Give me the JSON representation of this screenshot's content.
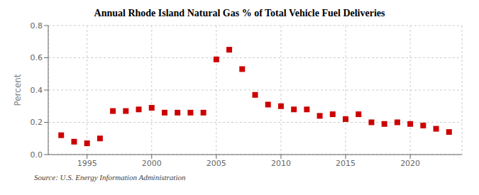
{
  "chart_data": {
    "type": "scatter",
    "title": "Annual Rhode Island Natural Gas % of Total Vehicle Fuel Deliveries",
    "ylabel": "Percent",
    "annotations": [
      "Source: U.S. Energy Information Administration"
    ],
    "x": [
      1993,
      1994,
      1995,
      1996,
      1997,
      1998,
      1999,
      2000,
      2001,
      2002,
      2003,
      2004,
      2005,
      2006,
      2007,
      2008,
      2009,
      2010,
      2011,
      2012,
      2013,
      2014,
      2015,
      2016,
      2017,
      2018,
      2019,
      2020,
      2021,
      2022,
      2023
    ],
    "values": [
      0.12,
      0.08,
      0.07,
      0.1,
      0.27,
      0.27,
      0.28,
      0.29,
      0.26,
      0.26,
      0.26,
      0.26,
      0.59,
      0.65,
      0.53,
      0.37,
      0.31,
      0.3,
      0.28,
      0.28,
      0.24,
      0.25,
      0.22,
      0.25,
      0.2,
      0.19,
      0.2,
      0.19,
      0.18,
      0.16,
      0.14
    ],
    "color": "#cc0000",
    "marker": "square",
    "xlim": [
      1992,
      2024
    ],
    "ylim": [
      0.0,
      0.8
    ],
    "xticks": [
      1995,
      2000,
      2005,
      2010,
      2015,
      2020
    ],
    "yticks": [
      {
        "value": 0,
        "label": "0.0"
      },
      0.2,
      0.4,
      0.6,
      0.8
    ],
    "grid": true
  }
}
